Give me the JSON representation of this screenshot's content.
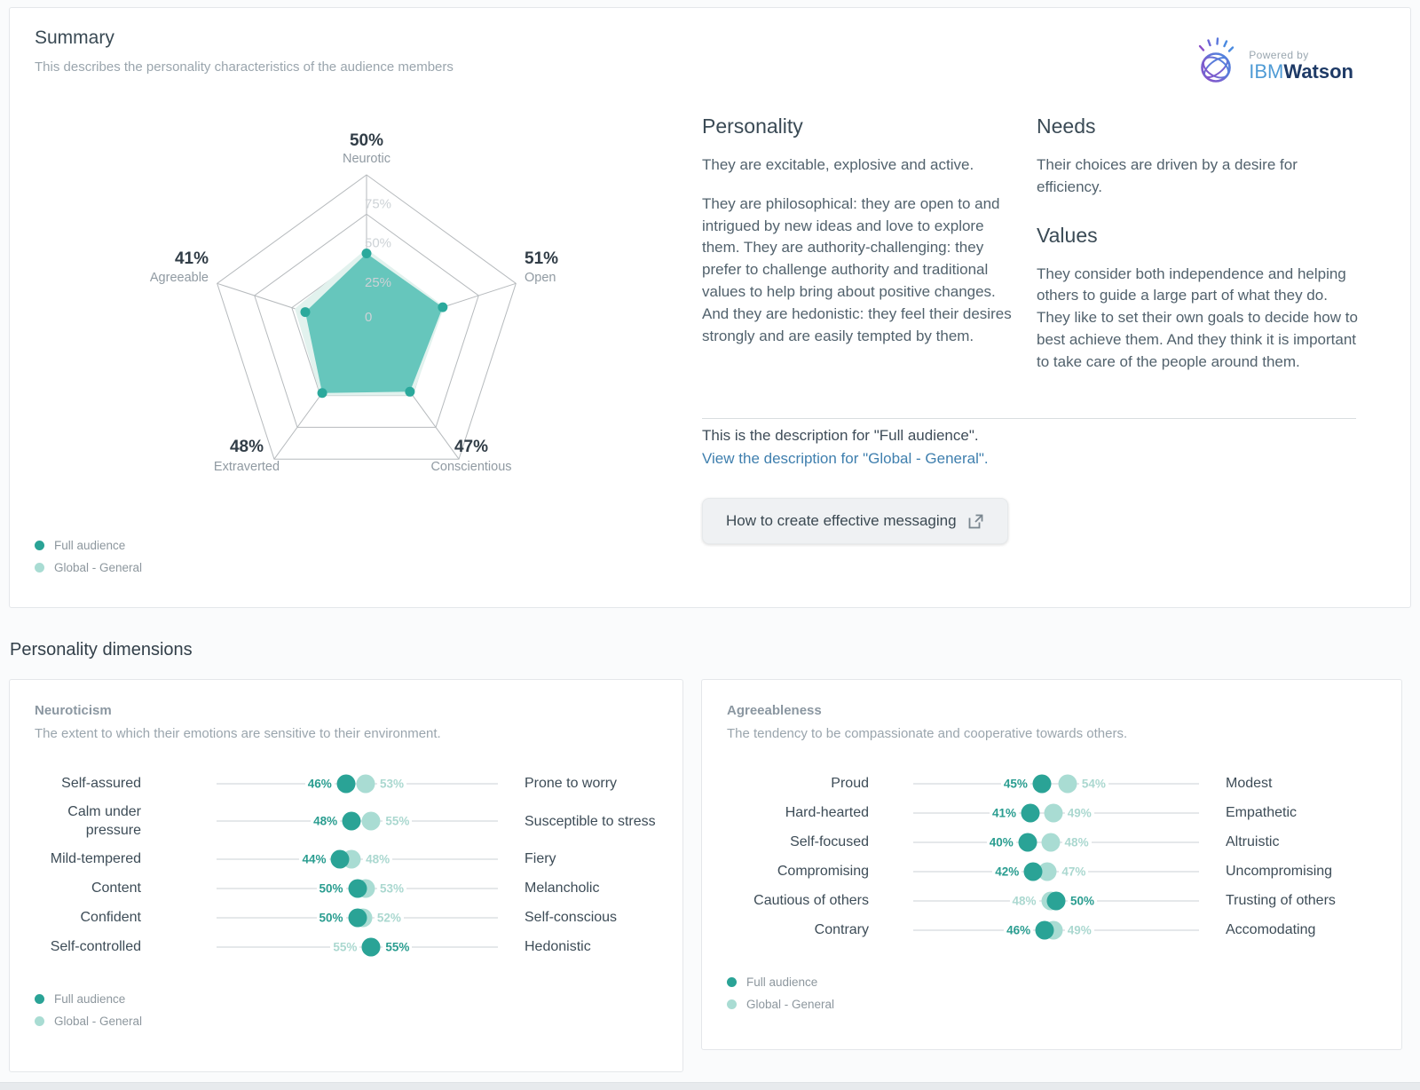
{
  "summary": {
    "title": "Summary",
    "subtitle": "This describes the personality characteristics of the audience members",
    "watson": {
      "powered_by": "Powered by",
      "ibm": "IBM",
      "watson": "Watson"
    },
    "personality": {
      "heading": "Personality",
      "paragraphs": [
        "They are excitable, explosive and active.",
        "They are philosophical: they are open to and intrigued by new ideas and love to explore them. They are authority-challenging: they prefer to challenge authority and traditional values to help bring about positive changes. And they are hedonistic: they feel their desires strongly and are easily tempted by them."
      ]
    },
    "needs": {
      "heading": "Needs",
      "paragraphs": [
        "Their choices are driven by a desire for efficiency."
      ]
    },
    "values": {
      "heading": "Values",
      "paragraphs": [
        "They consider both independence and helping others to guide a large part of what they do. They like to set their own goals to decide how to best achieve them. And they think it is important to take care of the people around them."
      ]
    },
    "description_note": "This is the description for \"Full audience\".",
    "description_link": "View the description for \"Global - General\".",
    "messaging_button": "How to create effective messaging"
  },
  "dimensions_heading": "Personality dimensions",
  "legend": {
    "full": "Full audience",
    "global": "Global - General"
  },
  "colors": {
    "full": "#2aa396",
    "full_text": "#2a9d90",
    "global": "#a9dcd3",
    "global_text": "#abd8d0",
    "radar_full": "#5fc3b8",
    "radar_global": "#e2f2ee",
    "radar_dot": "#2ba99c",
    "grid": "#b6babd",
    "tick_text": "#cdd2d6",
    "axis_pct_text": "#313d47",
    "axis_name_text": "#909aa2",
    "link": "#3f7fae"
  },
  "chart_data": [
    {
      "type": "radar",
      "categories": [
        "Neurotic",
        "Open",
        "Conscientious",
        "Extraverted",
        "Agreeable"
      ],
      "series": [
        {
          "name": "Full audience",
          "values": [
            50,
            51,
            47,
            48,
            41
          ]
        },
        {
          "name": "Global - General",
          "values": [
            53,
            52,
            50,
            50,
            48
          ]
        }
      ],
      "axis_range": [
        0,
        100
      ],
      "rings": [
        25,
        50,
        75,
        100
      ],
      "tick_labels": [
        "0",
        "25%",
        "50%",
        "75%"
      ],
      "point_labels": [
        "50%",
        "51%",
        "47%",
        "48%",
        "41%"
      ],
      "legend_position": "bottom-left",
      "grid": true
    },
    {
      "type": "dotplot",
      "title": "Neuroticism",
      "subtitle": "The extent to which their emotions are sensitive to their environment.",
      "axis_range": [
        0,
        100
      ],
      "legend": [
        "Full audience",
        "Global - General"
      ],
      "rows": [
        {
          "left": "Self-assured",
          "right": "Prone to worry",
          "full_audience": 46,
          "global_general": 53
        },
        {
          "left": "Calm under pressure",
          "right": "Susceptible to stress",
          "full_audience": 48,
          "global_general": 55
        },
        {
          "left": "Mild-tempered",
          "right": "Fiery",
          "full_audience": 44,
          "global_general": 48
        },
        {
          "left": "Content",
          "right": "Melancholic",
          "full_audience": 50,
          "global_general": 53
        },
        {
          "left": "Confident",
          "right": "Self-conscious",
          "full_audience": 50,
          "global_general": 52
        },
        {
          "left": "Self-controlled",
          "right": "Hedonistic",
          "full_audience": 55,
          "global_general": 55
        }
      ]
    },
    {
      "type": "dotplot",
      "title": "Agreeableness",
      "subtitle": "The tendency to be compassionate and cooperative towards others.",
      "axis_range": [
        0,
        100
      ],
      "legend": [
        "Full audience",
        "Global - General"
      ],
      "rows": [
        {
          "left": "Proud",
          "right": "Modest",
          "full_audience": 45,
          "global_general": 54
        },
        {
          "left": "Hard-hearted",
          "right": "Empathetic",
          "full_audience": 41,
          "global_general": 49
        },
        {
          "left": "Self-focused",
          "right": "Altruistic",
          "full_audience": 40,
          "global_general": 48
        },
        {
          "left": "Compromising",
          "right": "Uncompromising",
          "full_audience": 42,
          "global_general": 47
        },
        {
          "left": "Cautious of others",
          "right": "Trusting of others",
          "full_audience": 50,
          "global_general": 48
        },
        {
          "left": "Contrary",
          "right": "Accomodating",
          "full_audience": 46,
          "global_general": 49
        }
      ]
    }
  ]
}
